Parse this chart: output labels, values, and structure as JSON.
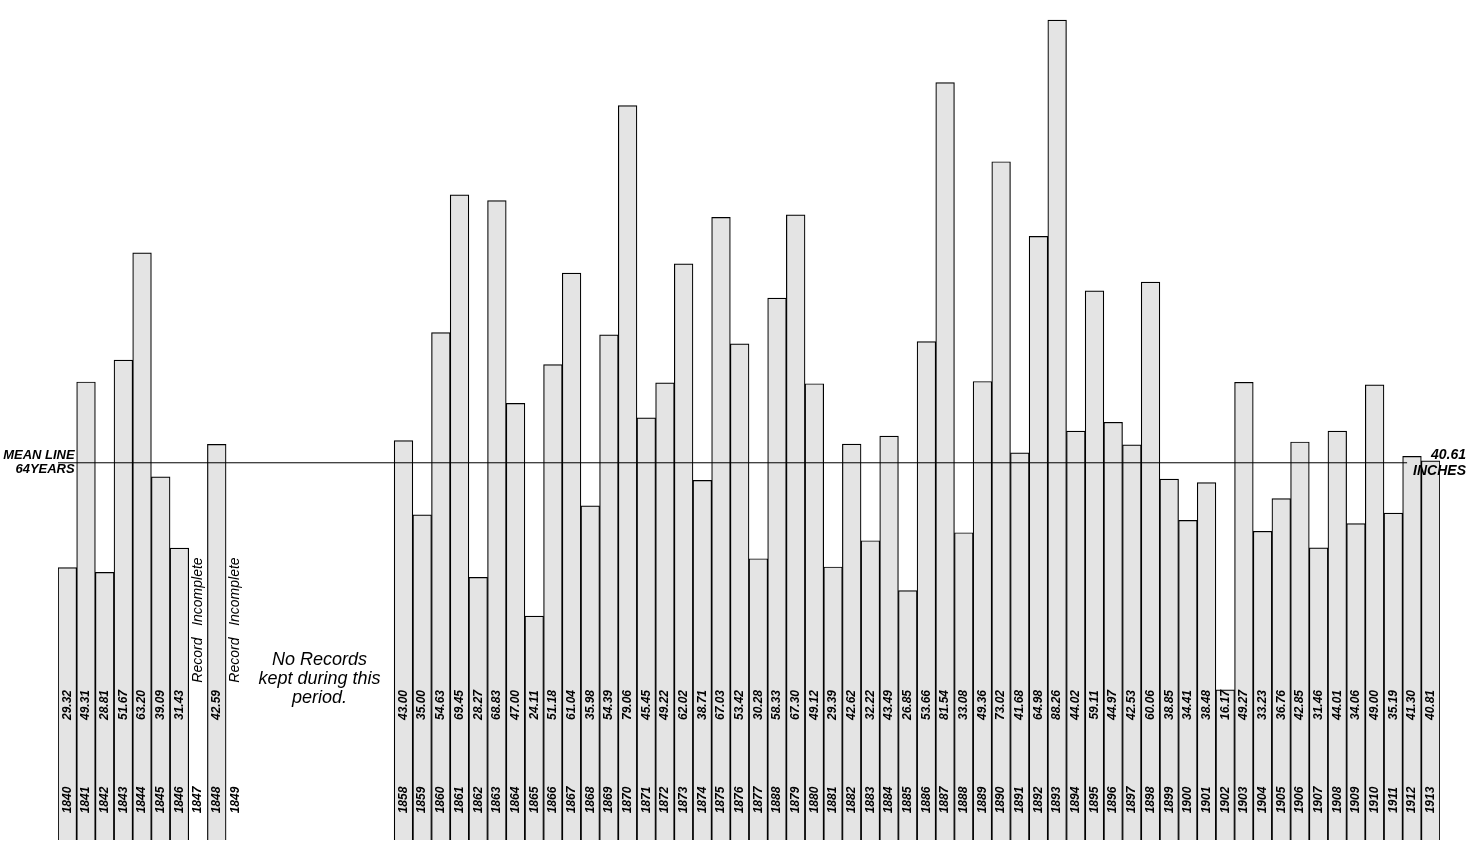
{
  "chart_data": {
    "type": "bar",
    "categories": [
      "1840",
      "1841",
      "1842",
      "1843",
      "1844",
      "1845",
      "1846",
      "1847",
      "1848",
      "1849",
      null,
      null,
      null,
      null,
      null,
      null,
      null,
      null,
      "1858",
      "1859",
      "1860",
      "1861",
      "1862",
      "1863",
      "1864",
      "1865",
      "1866",
      "1867",
      "1868",
      "1869",
      "1870",
      "1871",
      "1872",
      "1873",
      "1874",
      "1875",
      "1876",
      "1877",
      "1888",
      "1879",
      "1880",
      "1881",
      "1882",
      "1883",
      "1884",
      "1885",
      "1886",
      "1887",
      "1888",
      "1889",
      "1890",
      "1891",
      "1892",
      "1893",
      "1894",
      "1895",
      "1896",
      "1897",
      "1898",
      "1899",
      "1900",
      "1901",
      "1902",
      "1903",
      "1904",
      "1905",
      "1906",
      "1907",
      "1908",
      "1909",
      "1910",
      "1911",
      "1912",
      "1913"
    ],
    "values": [
      29.32,
      49.31,
      28.81,
      51.67,
      63.2,
      39.09,
      31.43,
      null,
      42.59,
      null,
      null,
      null,
      null,
      null,
      null,
      null,
      null,
      null,
      43.0,
      35.0,
      54.63,
      69.45,
      28.27,
      68.83,
      47.0,
      24.11,
      51.18,
      61.04,
      35.98,
      54.39,
      79.06,
      45.45,
      49.22,
      62.02,
      38.71,
      67.03,
      53.42,
      30.28,
      58.33,
      67.3,
      49.12,
      29.39,
      42.62,
      32.22,
      43.49,
      26.85,
      53.66,
      81.54,
      33.08,
      49.36,
      73.02,
      41.68,
      64.98,
      88.26,
      44.02,
      59.11,
      44.97,
      42.53,
      60.06,
      38.85,
      34.41,
      38.48,
      16.17,
      49.27,
      33.23,
      36.76,
      42.85,
      31.46,
      44.01,
      34.06,
      49.0,
      35.19,
      41.3,
      40.81
    ],
    "value_labels": [
      "29.32",
      "49.31",
      "28.81",
      "51.67",
      "63.20",
      "39.09",
      "31.43",
      null,
      "42.59",
      null,
      null,
      null,
      null,
      null,
      null,
      null,
      null,
      null,
      "43.00",
      "35.00",
      "54.63",
      "69.45",
      "28.27",
      "68.83",
      "47.00",
      "24.11",
      "51.18",
      "61.04",
      "35.98",
      "54.39",
      "79.06",
      "45.45",
      "49.22",
      "62.02",
      "38.71",
      "67.03",
      "53.42",
      "30.28",
      "58.33",
      "67.30",
      "49.12",
      "29.39",
      "42.62",
      "32.22",
      "43.49",
      "26.85",
      "53.66",
      "81.54",
      "33.08",
      "49.36",
      "73.02",
      "41.68",
      "64.98",
      "88.26",
      "44.02",
      "59.11",
      "44.97",
      "42.53",
      "60.06",
      "38.85",
      "34.41",
      "38.48",
      "16.17",
      "49.27",
      "33.23",
      "36.76",
      "42.85",
      "31.46",
      "44.01",
      "34.06",
      "49.00",
      "35.19",
      "41.30",
      "40.81"
    ],
    "color": "#e4e4e4",
    "ref_lines": [
      {
        "axis": "y",
        "value": 40.61,
        "label": "40.61\nINCHES"
      }
    ],
    "annotations": [
      "MEAN LINE\n64YEARS",
      "Record   Incomplete",
      "Record   Incomplete",
      "No Records\nkept during this\nperiod."
    ],
    "legend": false
  }
}
